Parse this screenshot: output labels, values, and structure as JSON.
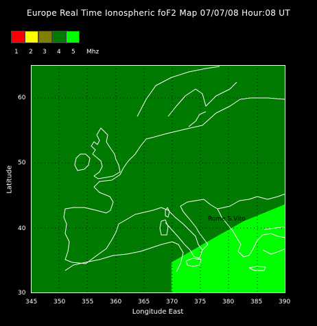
{
  "title": "Europe Real Time Ionospheric foF2 Map  07/07/08 Hour:08 UT",
  "legend": {
    "colors": [
      {
        "value": "1",
        "hex": "#ff0000"
      },
      {
        "value": "2",
        "hex": "#ffff00"
      },
      {
        "value": "3",
        "hex": "#808000"
      },
      {
        "value": "4",
        "hex": "#007a00"
      },
      {
        "value": "5",
        "hex": "#00ff00"
      }
    ],
    "unit": "Mhz"
  },
  "map": {
    "background_hex": "#007a00",
    "region_hex": "#00ff00",
    "station_label": "Rome S.Vito",
    "grid": "dotted"
  },
  "axes": {
    "x_ticks": [
      "345",
      "350",
      "355",
      "360",
      "365",
      "370",
      "375",
      "380",
      "385",
      "390"
    ],
    "y_ticks": [
      "30",
      "40",
      "50",
      "60"
    ],
    "xlabel": "Longitude East",
    "ylabel": "Latitude"
  }
}
